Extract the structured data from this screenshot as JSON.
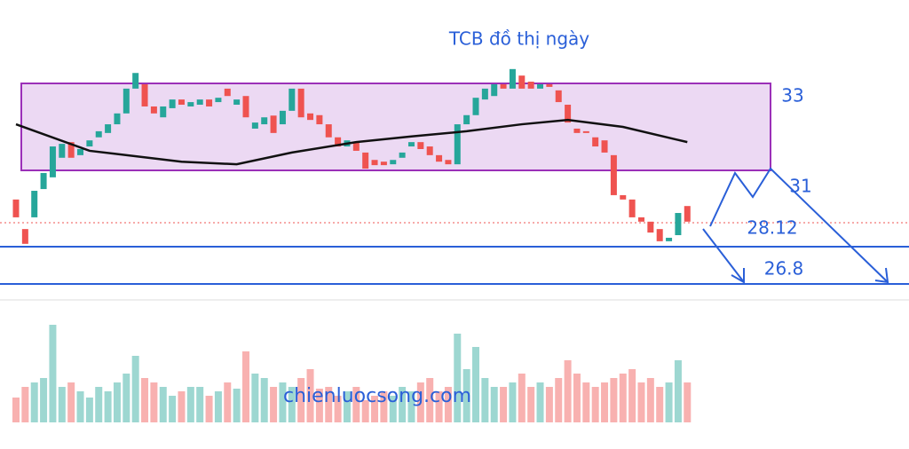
{
  "chart_data": {
    "type": "candlestick",
    "title": "TCB đồ thị ngày",
    "watermark": "chienluocsong.com",
    "annotations": [
      "33",
      "31",
      "28.12",
      "26.8"
    ],
    "ylim": [
      27.6,
      34.9
    ],
    "up_color": "#26a69a",
    "down_color": "#ef5350",
    "open": [
      30.33,
      29.65,
      29.92,
      30.57,
      30.84,
      31.29,
      31.65,
      31.35,
      31.55,
      31.76,
      31.86,
      32.06,
      32.31,
      32.88,
      32.98,
      32.47,
      32.22,
      32.43,
      32.63,
      32.47,
      32.51,
      32.63,
      32.57,
      32.88,
      32.51,
      32.71,
      31.96,
      32.06,
      32.26,
      32.06,
      32.37,
      32.88,
      32.31,
      32.27,
      32.06,
      31.76,
      31.55,
      31.65,
      31.41,
      31.24,
      31.2,
      31.14,
      31.29,
      31.55,
      31.65,
      31.55,
      31.35,
      31.24,
      31.14,
      32.06,
      32.27,
      32.63,
      32.71,
      32.98,
      32.88,
      33.18,
      33.04,
      32.88,
      32.98,
      32.84,
      32.51,
      31.96,
      31.9,
      31.76,
      31.69,
      31.35,
      30.43,
      30.33,
      29.92,
      29.82,
      29.65,
      29.37,
      29.51,
      30.18
    ],
    "close": [
      29.92,
      29.31,
      30.53,
      30.94,
      31.55,
      31.61,
      31.29,
      31.49,
      31.69,
      31.9,
      32.06,
      32.31,
      32.88,
      33.24,
      32.47,
      32.31,
      32.47,
      32.63,
      32.51,
      32.57,
      32.63,
      32.47,
      32.67,
      32.71,
      32.63,
      32.22,
      32.1,
      32.22,
      31.86,
      32.37,
      32.88,
      32.22,
      32.16,
      32.06,
      31.76,
      31.55,
      31.69,
      31.45,
      31.04,
      31.12,
      31.12,
      31.24,
      31.41,
      31.65,
      31.49,
      31.35,
      31.2,
      31.14,
      32.06,
      32.27,
      32.67,
      32.88,
      32.98,
      32.88,
      33.33,
      32.88,
      32.88,
      32.98,
      32.92,
      32.57,
      32.1,
      31.86,
      31.86,
      31.55,
      31.41,
      30.43,
      30.33,
      29.92,
      29.82,
      29.57,
      29.37,
      29.45,
      30.02,
      29.82
    ],
    "volume": [
      28,
      40,
      45,
      50,
      110,
      40,
      45,
      35,
      28,
      40,
      35,
      45,
      55,
      75,
      50,
      45,
      40,
      30,
      35,
      40,
      40,
      30,
      35,
      45,
      38,
      80,
      55,
      50,
      40,
      45,
      40,
      50,
      60,
      38,
      40,
      30,
      35,
      40,
      25,
      30,
      35,
      30,
      40,
      35,
      45,
      50,
      35,
      40,
      100,
      60,
      85,
      50,
      40,
      40,
      45,
      55,
      40,
      45,
      40,
      50,
      70,
      55,
      45,
      40,
      45,
      50,
      55,
      60,
      45,
      50,
      40,
      45,
      70,
      45
    ],
    "volume_lim": [
      0,
      120
    ],
    "moving_average": {
      "color": "#111111",
      "x": [
        0,
        8,
        18,
        24,
        30,
        37,
        43,
        49,
        55,
        60,
        66,
        73
      ],
      "values": [
        32.06,
        31.45,
        31.2,
        31.14,
        31.41,
        31.65,
        31.78,
        31.9,
        32.06,
        32.16,
        32.0,
        31.65
      ]
    }
  }
}
